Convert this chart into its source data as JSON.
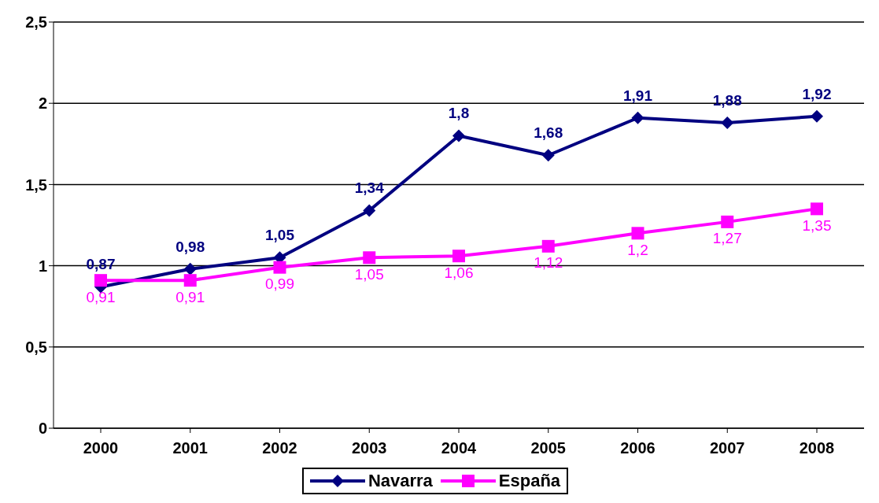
{
  "chart_data": {
    "type": "line",
    "categories": [
      "2000",
      "2001",
      "2002",
      "2003",
      "2004",
      "2005",
      "2006",
      "2007",
      "2008"
    ],
    "series": [
      {
        "name": "Navarra",
        "color": "#000080",
        "marker": "diamond",
        "values": [
          0.87,
          0.98,
          1.05,
          1.34,
          1.8,
          1.68,
          1.91,
          1.88,
          1.92
        ],
        "value_labels": [
          "0,87",
          "0,98",
          "1,05",
          "1,34",
          "1,8",
          "1,68",
          "1,91",
          "1,88",
          "1,92"
        ]
      },
      {
        "name": "España",
        "color": "#ff00ff",
        "marker": "square",
        "values": [
          0.91,
          0.91,
          0.99,
          1.05,
          1.06,
          1.12,
          1.2,
          1.27,
          1.35
        ],
        "value_labels": [
          "0,91",
          "0,91",
          "0,99",
          "1,05",
          "1,06",
          "1,12",
          "1,2",
          "1,27",
          "1,35"
        ]
      }
    ],
    "ylim": [
      0,
      2.5
    ],
    "yticks": [
      0,
      {
        "value": 0.5,
        "label": "0,5"
      },
      1,
      {
        "value": 1.5,
        "label": "1,5"
      },
      2,
      {
        "value": 2.5,
        "label": "2,5"
      }
    ],
    "grid": "y",
    "legend": "bottom"
  }
}
